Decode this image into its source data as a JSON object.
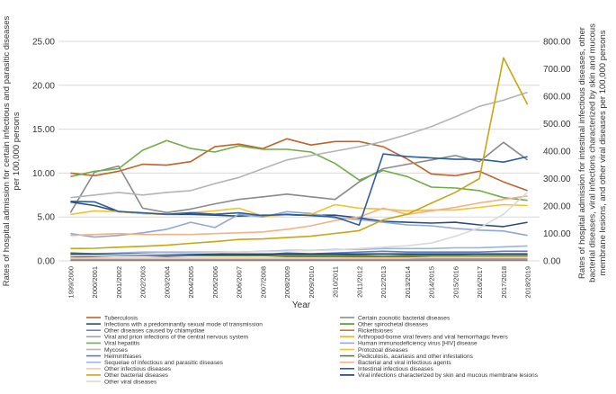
{
  "chart_data": {
    "type": "line",
    "xlabel": "Year",
    "ylabel_left": "Rates of hospital admission for certain infectious and parasitic diseases per 100,000 persons",
    "ylabel_right_lines": [
      "Rates of hospital admission for intestinal infectious diseases,  other",
      "bacterial diseases, viral infections characterized by skin and mucous",
      "membrane lesions, and other viral diseases per 100,000 persons"
    ],
    "ylim_left": [
      0,
      25
    ],
    "ylim_right": [
      0,
      800
    ],
    "yticks_left": [
      "0.00",
      "5.00",
      "10.00",
      "15.00",
      "20.00",
      "25.00"
    ],
    "yticks_right": [
      "0.00",
      "100.00",
      "200.00",
      "300.00",
      "400.00",
      "500.00",
      "600.00",
      "700.00",
      "800.00"
    ],
    "categories": [
      "1999/2000",
      "2000/2001",
      "2001/2002",
      "2002/2003",
      "2003/2004",
      "2004/2005",
      "2005/2006",
      "2006/2007",
      "2007/2008",
      "2008/2009",
      "2009/2010",
      "2010/2011",
      "2011/2012",
      "2012/2013",
      "2013/2014",
      "2014/2015",
      "2015/2016",
      "2016/2017",
      "2017/2018",
      "2018/2019"
    ],
    "series": [
      {
        "name": "Tuberculosis",
        "color": "#c0632b",
        "axis": "left",
        "values": [
          10.0,
          9.7,
          10.2,
          11.0,
          10.9,
          11.3,
          13.0,
          13.3,
          12.8,
          13.9,
          13.2,
          13.6,
          13.6,
          13.0,
          11.6,
          9.9,
          9.7,
          10.2,
          9.0,
          8.0
        ]
      },
      {
        "name": "Certain zoonotic bacterial diseases",
        "color": "#8a8a8a",
        "axis": "left",
        "values": [
          5.5,
          10.1,
          10.8,
          6.0,
          5.5,
          5.9,
          6.5,
          7.0,
          7.3,
          7.6,
          7.3,
          7.0,
          9.0,
          10.5,
          11.0,
          11.5,
          12.0,
          11.3,
          13.5,
          11.5
        ]
      },
      {
        "name": "Infections with a predominantly sexual mode of transmission",
        "color": "#2b4c7e",
        "axis": "left",
        "values": [
          6.7,
          6.3,
          5.6,
          5.4,
          5.3,
          5.3,
          5.2,
          5.1,
          5.2,
          5.2,
          5.2,
          5.2,
          4.9,
          4.5,
          4.4,
          4.3,
          4.4,
          4.1,
          3.9,
          4.4
        ]
      },
      {
        "name": "Other spirochetal diseases",
        "color": "#5b8c2a",
        "axis": "left",
        "values": [
          0.4,
          0.5,
          0.6,
          0.6,
          0.5,
          0.6,
          0.6,
          0.6,
          0.6,
          0.6,
          0.6,
          0.6,
          0.6,
          0.5,
          0.6,
          0.6,
          0.6,
          0.6,
          0.6,
          0.6
        ]
      },
      {
        "name": "Other diseases caused by chlamydiae",
        "color": "#6b86c4",
        "axis": "left",
        "values": [
          0.2,
          0.2,
          0.2,
          0.2,
          0.2,
          0.2,
          0.2,
          0.2,
          0.2,
          0.2,
          0.2,
          0.2,
          0.2,
          0.2,
          0.2,
          0.2,
          0.2,
          0.2,
          0.2,
          0.2
        ]
      },
      {
        "name": "Rickettsioses",
        "color": "#c8772e",
        "axis": "left",
        "values": [
          0.05,
          0.05,
          0.05,
          0.05,
          0.05,
          0.05,
          0.05,
          0.05,
          0.05,
          0.05,
          0.05,
          0.05,
          0.05,
          0.05,
          0.05,
          0.05,
          0.05,
          0.05,
          0.05,
          0.05
        ]
      },
      {
        "name": "Viral and prion infections of the central nervous system",
        "color": "#a0a0a0",
        "axis": "left",
        "values": [
          0.7,
          0.7,
          0.7,
          0.7,
          0.7,
          0.7,
          0.7,
          0.7,
          0.7,
          0.7,
          0.7,
          0.7,
          0.8,
          0.8,
          0.8,
          0.8,
          0.8,
          0.8,
          0.8,
          0.8
        ]
      },
      {
        "name": "Arthropod-borne viral fevers and viral hemorrhagic fevers",
        "color": "#e6b12a",
        "axis": "left",
        "values": [
          0.3,
          0.3,
          0.3,
          0.3,
          0.3,
          0.3,
          0.3,
          0.3,
          0.3,
          0.3,
          0.3,
          0.3,
          0.4,
          0.4,
          0.4,
          0.5,
          0.5,
          0.6,
          0.6,
          0.6
        ]
      },
      {
        "name": "Viral hepatitis",
        "color": "#70ad47",
        "axis": "left",
        "values": [
          9.6,
          10.2,
          10.5,
          12.6,
          13.7,
          12.8,
          12.4,
          13.1,
          12.7,
          12.7,
          12.4,
          11.1,
          9.2,
          10.3,
          9.6,
          8.4,
          8.3,
          8.0,
          7.2,
          6.9
        ]
      },
      {
        "name": "Human immunodeficiency virus [HIV] disease",
        "color": "#8fa8d8",
        "axis": "left",
        "values": [
          3.1,
          2.7,
          2.9,
          3.2,
          3.6,
          4.4,
          3.8,
          5.3,
          5.0,
          5.6,
          5.4,
          4.9,
          4.7,
          4.4,
          4.1,
          4.0,
          3.7,
          3.5,
          3.4,
          2.9
        ]
      },
      {
        "name": "Mycoses",
        "color": "#b4b4b4",
        "axis": "left",
        "values": [
          7.2,
          7.5,
          7.8,
          7.5,
          7.8,
          8.0,
          8.8,
          9.5,
          10.5,
          11.5,
          12.0,
          12.5,
          13.0,
          13.6,
          14.4,
          15.3,
          16.4,
          17.6,
          18.3,
          19.2
        ]
      },
      {
        "name": "Protozoal diseases",
        "color": "#f2c230",
        "axis": "left",
        "values": [
          5.3,
          5.7,
          5.6,
          5.4,
          5.3,
          5.5,
          5.7,
          6.0,
          5.1,
          5.2,
          5.3,
          6.4,
          6.0,
          5.9,
          5.7,
          5.8,
          5.8,
          6.1,
          6.4,
          6.3
        ]
      },
      {
        "name": "Helminthiases",
        "color": "#5a7fc0",
        "axis": "left",
        "values": [
          0.6,
          0.6,
          0.6,
          0.6,
          0.6,
          0.6,
          0.6,
          0.7,
          0.7,
          0.9,
          0.8,
          0.9,
          1.0,
          1.1,
          1.0,
          1.0,
          1.0,
          1.0,
          1.1,
          1.1
        ]
      },
      {
        "name": "Pediculosis, acariasis and other infestations",
        "color": "#548235",
        "axis": "left",
        "values": [
          0.9,
          0.8,
          0.8,
          0.8,
          0.8,
          0.7,
          0.6,
          0.6,
          0.6,
          0.5,
          0.5,
          0.5,
          0.5,
          0.5,
          0.5,
          0.5,
          0.5,
          0.5,
          0.5,
          0.5
        ]
      },
      {
        "name": "Sequelae of infectious and parasitic diseases",
        "color": "#9db3e0",
        "axis": "left",
        "values": [
          0.8,
          0.8,
          0.9,
          1.0,
          1.0,
          1.0,
          1.0,
          1.0,
          1.1,
          1.2,
          1.2,
          1.3,
          1.3,
          1.4,
          1.4,
          1.4,
          1.5,
          1.5,
          1.6,
          1.7
        ]
      },
      {
        "name": "Bacterial and viral infectious agents",
        "color": "#f4b183",
        "axis": "left",
        "values": [
          2.9,
          3.0,
          3.1,
          3.0,
          3.0,
          3.0,
          3.1,
          3.2,
          3.3,
          3.6,
          4.0,
          4.6,
          5.0,
          6.0,
          5.3,
          5.7,
          6.1,
          6.6,
          7.0,
          7.4
        ]
      },
      {
        "name": "Other infectious diseases",
        "color": "#f8cbad",
        "axis": "left",
        "values": [
          0.3,
          0.3,
          0.3,
          0.3,
          0.3,
          0.3,
          0.3,
          0.3,
          0.3,
          0.3,
          0.3,
          0.3,
          0.3,
          0.3,
          0.3,
          0.4,
          0.4,
          0.4,
          0.4,
          0.4
        ]
      },
      {
        "name": "Intestinal infectious diseases",
        "color": "#2e5e9e",
        "axis": "right",
        "values": [
          217,
          215,
          180,
          175,
          170,
          175,
          170,
          175,
          165,
          170,
          165,
          160,
          130,
          390,
          380,
          375,
          370,
          370,
          360,
          380
        ]
      },
      {
        "name": "Other bacterial diseases",
        "color": "#c9a512",
        "axis": "right",
        "values": [
          45,
          46,
          50,
          53,
          57,
          64,
          70,
          78,
          80,
          85,
          90,
          100,
          110,
          150,
          170,
          210,
          250,
          300,
          740,
          570
        ]
      },
      {
        "name": "Viral infections characterized by skin and mucous membrane lesions",
        "color": "#1f3864",
        "axis": "right",
        "values": [
          25,
          25,
          25,
          25,
          25,
          25,
          25,
          25,
          25,
          25,
          25,
          25,
          25,
          25,
          25,
          25,
          25,
          25,
          25,
          25
        ]
      },
      {
        "name": "Other viral diseases",
        "color": "#d9d9d9",
        "axis": "right",
        "values": [
          20,
          20,
          22,
          24,
          26,
          28,
          30,
          32,
          34,
          36,
          38,
          40,
          45,
          50,
          55,
          65,
          90,
          120,
          170,
          250
        ]
      }
    ],
    "legend": {
      "placement": "bottom",
      "columns": 2,
      "order": [
        0,
        1,
        2,
        3,
        4,
        5,
        6,
        7,
        8,
        9,
        10,
        11,
        12,
        13,
        14,
        15,
        16,
        17,
        18,
        19,
        20
      ]
    }
  }
}
